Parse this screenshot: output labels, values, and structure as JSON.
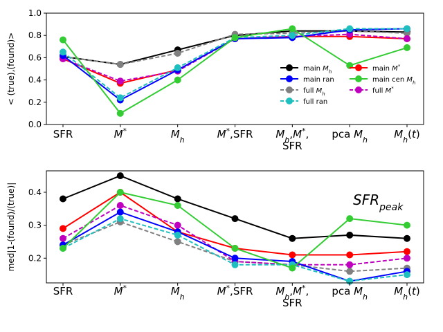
{
  "chart_data": [
    {
      "type": "line",
      "ylabel": "< (true),(found)>",
      "ylim": [
        0.0,
        1.0
      ],
      "yticks": [
        "0.0",
        "0.2",
        "0.4",
        "0.6",
        "0.8",
        "1.0"
      ],
      "ytick_values": [
        0.0,
        0.2,
        0.4,
        0.6,
        0.8,
        1.0
      ],
      "categories": [
        [
          "SFR"
        ],
        [
          "M*"
        ],
        [
          "Mh"
        ],
        [
          "M*,SFR"
        ],
        [
          "Mh,M*,",
          "SFR"
        ],
        [
          "pca Mh"
        ],
        [
          "Mh(t)"
        ]
      ],
      "legend_position": "center-right",
      "legend_order": [
        0,
        4,
        1,
        5,
        2,
        6,
        3
      ],
      "series": [
        {
          "name": "main Mh",
          "color": "#000000",
          "dash": "solid",
          "values": [
            0.61,
            0.54,
            0.67,
            0.8,
            0.84,
            0.84,
            0.83
          ]
        },
        {
          "name": "full Mh",
          "color": "#808080",
          "dash": "dashed",
          "values": [
            0.61,
            0.54,
            0.64,
            0.81,
            0.82,
            0.84,
            0.82
          ]
        },
        {
          "name": "main M*",
          "color": "#ff0000",
          "dash": "solid",
          "values": [
            0.59,
            0.37,
            0.49,
            0.77,
            0.79,
            0.79,
            0.77
          ]
        },
        {
          "name": "full M*",
          "color": "#bf00bf",
          "dash": "dashed",
          "values": [
            0.59,
            0.39,
            0.48,
            0.77,
            0.79,
            0.81,
            0.77
          ]
        },
        {
          "name": "main ran",
          "color": "#0000ff",
          "dash": "solid",
          "values": [
            0.62,
            0.22,
            0.49,
            0.77,
            0.78,
            0.85,
            0.86
          ]
        },
        {
          "name": "full ran",
          "color": "#1fbfbf",
          "dash": "dashed",
          "values": [
            0.65,
            0.24,
            0.51,
            0.78,
            0.8,
            0.86,
            0.86
          ]
        },
        {
          "name": "main cen Mh",
          "color": "#33cc33",
          "dash": "solid",
          "values": [
            0.76,
            0.1,
            0.4,
            0.78,
            0.86,
            0.53,
            0.69
          ]
        }
      ]
    },
    {
      "type": "line",
      "ylabel": "med|1-(found)/(true)|",
      "ylim": [
        0.125,
        0.465
      ],
      "yticks": [
        "0.2",
        "0.3",
        "0.4"
      ],
      "ytick_values": [
        0.2,
        0.3,
        0.4
      ],
      "annotation": "SFRpeak",
      "categories": [
        [
          "SFR"
        ],
        [
          "M*"
        ],
        [
          "Mh"
        ],
        [
          "M*,SFR"
        ],
        [
          "Mh,M*,",
          "SFR"
        ],
        [
          "pca Mh"
        ],
        [
          "Mh(t)"
        ]
      ],
      "series": [
        {
          "name": "main Mh",
          "color": "#000000",
          "dash": "solid",
          "values": [
            0.38,
            0.45,
            0.38,
            0.32,
            0.26,
            0.27,
            0.26
          ]
        },
        {
          "name": "full Mh",
          "color": "#808080",
          "dash": "dashed",
          "values": [
            0.24,
            0.31,
            0.25,
            0.19,
            0.18,
            0.16,
            0.17
          ]
        },
        {
          "name": "main M*",
          "color": "#ff0000",
          "dash": "solid",
          "values": [
            0.29,
            0.4,
            0.28,
            0.23,
            0.21,
            0.21,
            0.22
          ]
        },
        {
          "name": "full M*",
          "color": "#bf00bf",
          "dash": "dashed",
          "values": [
            0.26,
            0.36,
            0.3,
            0.19,
            0.18,
            0.18,
            0.2
          ]
        },
        {
          "name": "main ran",
          "color": "#0000ff",
          "dash": "solid",
          "values": [
            0.24,
            0.34,
            0.28,
            0.2,
            0.19,
            0.13,
            0.16
          ]
        },
        {
          "name": "full ran",
          "color": "#1fbfbf",
          "dash": "dashed",
          "values": [
            0.23,
            0.32,
            0.27,
            0.18,
            0.18,
            0.13,
            0.15
          ]
        },
        {
          "name": "main cen Mh",
          "color": "#33cc33",
          "dash": "solid",
          "values": [
            0.23,
            0.4,
            0.36,
            0.23,
            0.17,
            0.32,
            0.3
          ]
        }
      ]
    }
  ]
}
